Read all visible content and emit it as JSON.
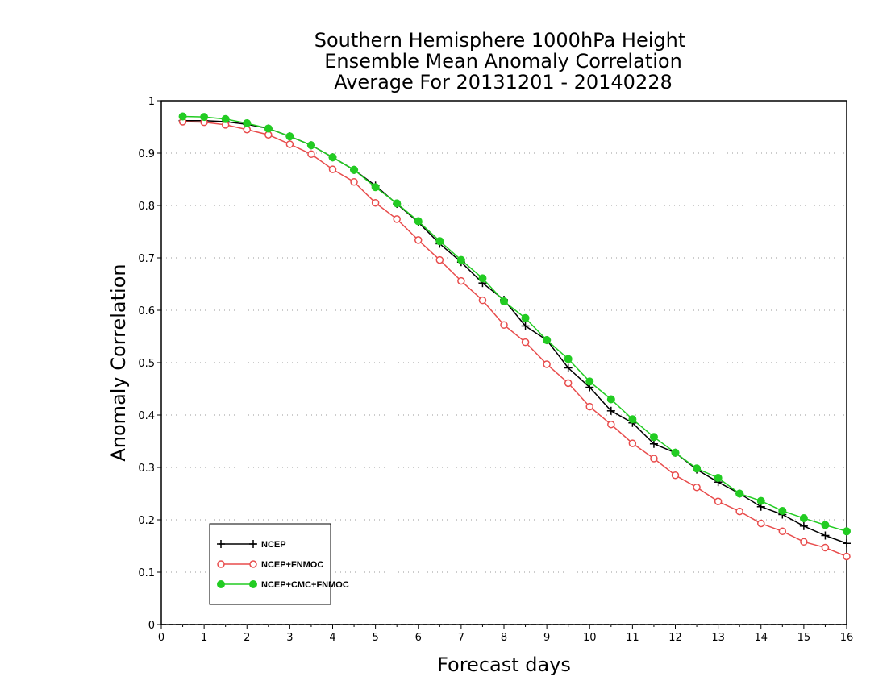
{
  "chart_data": {
    "type": "line",
    "title": [
      "Southern Hemisphere 1000hPa Height",
      "Ensemble Mean Anomaly Correlation",
      "Average For 20131201 - 20140228"
    ],
    "xlabel": "Forecast days",
    "ylabel": "Anomaly Correlation",
    "xlim": [
      0,
      16
    ],
    "ylim": [
      0,
      1
    ],
    "x_ticks": [
      "0",
      "1",
      "2",
      "3",
      "4",
      "5",
      "6",
      "7",
      "8",
      "9",
      "10",
      "11",
      "12",
      "13",
      "14",
      "15",
      "16"
    ],
    "y_ticks": [
      "0",
      "0.1",
      "0.2",
      "0.3",
      "0.4",
      "0.5",
      "0.6",
      "0.7",
      "0.8",
      "0.9",
      "1"
    ],
    "grid": "horizontal dotted",
    "legend_position": "bottom-left",
    "x": [
      0.5,
      1,
      1.5,
      2,
      2.5,
      3,
      3.5,
      4,
      4.5,
      5,
      5.5,
      6,
      6.5,
      7,
      7.5,
      8,
      8.5,
      9,
      9.5,
      10,
      10.5,
      11,
      11.5,
      12,
      12.5,
      13,
      13.5,
      14,
      14.5,
      15,
      15.5,
      16
    ],
    "series": [
      {
        "name": "NCEP",
        "color": "#000000",
        "marker": "plus",
        "values": [
          0.962,
          0.962,
          0.96,
          0.955,
          0.947,
          0.932,
          0.915,
          0.892,
          0.868,
          0.838,
          0.803,
          0.768,
          0.727,
          0.692,
          0.652,
          0.62,
          0.57,
          0.543,
          0.49,
          0.453,
          0.408,
          0.385,
          0.345,
          0.328,
          0.296,
          0.272,
          0.25,
          0.225,
          0.21,
          0.188,
          0.17,
          0.155
        ]
      },
      {
        "name": "NCEP+FNMOC",
        "color": "#e84c4c",
        "marker": "open-circle",
        "values": [
          0.96,
          0.959,
          0.954,
          0.945,
          0.935,
          0.917,
          0.898,
          0.869,
          0.845,
          0.805,
          0.774,
          0.734,
          0.696,
          0.656,
          0.619,
          0.572,
          0.539,
          0.497,
          0.461,
          0.416,
          0.382,
          0.346,
          0.317,
          0.285,
          0.262,
          0.235,
          0.216,
          0.193,
          0.178,
          0.158,
          0.147,
          0.13
        ]
      },
      {
        "name": "NCEP+CMC+FNMOC",
        "color": "#22cc22",
        "marker": "filled-circle",
        "values": [
          0.97,
          0.969,
          0.965,
          0.957,
          0.947,
          0.932,
          0.915,
          0.892,
          0.868,
          0.835,
          0.804,
          0.77,
          0.732,
          0.696,
          0.661,
          0.617,
          0.585,
          0.543,
          0.507,
          0.464,
          0.43,
          0.392,
          0.358,
          0.328,
          0.298,
          0.28,
          0.25,
          0.236,
          0.217,
          0.203,
          0.19,
          0.178
        ]
      }
    ]
  }
}
